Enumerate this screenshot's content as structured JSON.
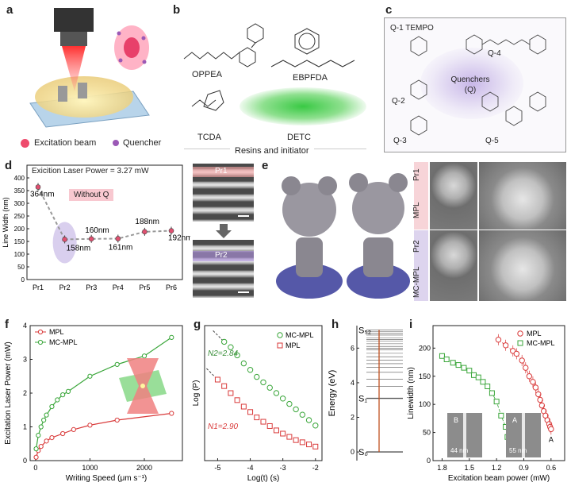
{
  "panels": {
    "a": {
      "letter": "a",
      "legend": [
        "Excitation beam",
        "Quencher"
      ]
    },
    "b": {
      "letter": "b",
      "molecules": [
        "OPPEA",
        "EBPFDA",
        "TCDA",
        "DETC"
      ],
      "footer": "Resins and initiator"
    },
    "c": {
      "letter": "c",
      "quenchers": [
        "Q-1 TEMPO",
        "Q-2",
        "Q-3",
        "Q-4",
        "Q-5"
      ],
      "center_label": "Quenchers (Q)"
    },
    "d": {
      "letter": "d",
      "title": "Exicition Laser Power = 3.27 mW",
      "without_q": "Without Q",
      "sem_labels": [
        "Pr1",
        "Pr2"
      ],
      "chart_data": {
        "type": "scatter",
        "xlabel": "",
        "ylabel": "Line Width (nm)",
        "categories": [
          "Pr1",
          "Pr2",
          "Pr3",
          "Pr4",
          "Pr5",
          "Pr6"
        ],
        "ylim": [
          0,
          450
        ],
        "yticks": [
          0,
          50,
          100,
          150,
          200,
          250,
          300,
          350,
          400
        ],
        "values": [
          364,
          158,
          160,
          161,
          188,
          192
        ],
        "labels": [
          "364nm",
          "158nm",
          "160nm",
          "161nm",
          "188nm",
          "192nm"
        ]
      }
    },
    "e": {
      "letter": "e",
      "row_labels": [
        "MPL",
        "Pr1",
        "MC-MPL",
        "Pr2"
      ]
    },
    "f": {
      "letter": "f",
      "chart_data": {
        "type": "line",
        "xlabel": "Writing Speed (μm s⁻¹)",
        "ylabel": "Excitation Laser Power (mW)",
        "xlim": [
          -100,
          2700
        ],
        "ylim": [
          0,
          4
        ],
        "xticks": [
          0,
          1000,
          2000
        ],
        "yticks": [
          0,
          1,
          2,
          3,
          4
        ],
        "series": [
          {
            "name": "MPL",
            "color": "#d93a3a",
            "x": [
              10,
              50,
              100,
              200,
              300,
              500,
              700,
              1000,
              1500,
              2500
            ],
            "y": [
              0.1,
              0.3,
              0.42,
              0.58,
              0.68,
              0.8,
              0.92,
              1.05,
              1.2,
              1.4
            ]
          },
          {
            "name": "MC-MPL",
            "color": "#3aa63a",
            "x": [
              10,
              50,
              100,
              150,
              200,
              300,
              400,
              500,
              600,
              1000,
              1500,
              2000,
              2500
            ],
            "y": [
              0.35,
              0.75,
              1.0,
              1.2,
              1.35,
              1.6,
              1.8,
              1.95,
              2.05,
              2.5,
              2.85,
              3.1,
              3.65
            ]
          }
        ]
      }
    },
    "g": {
      "letter": "g",
      "n2": "N2=2.84",
      "n1": "N1=2.90",
      "chart_data": {
        "type": "scatter",
        "xlabel": "Log(t) (s)",
        "ylabel": "Log (P)",
        "xlim": [
          -5.4,
          -1.8
        ],
        "xticks": [
          -5,
          -4,
          -3,
          -2
        ],
        "series": [
          {
            "name": "MC-MPL",
            "color": "#3aa63a",
            "x": [
              -4.8,
              -4.6,
              -4.4,
              -4.2,
              -4.0,
              -3.8,
              -3.6,
              -3.4,
              -3.2,
              -3.0,
              -2.8,
              -2.6,
              -2.4,
              -2.2,
              -2.0
            ],
            "y": [
              4.3,
              4.2,
              4.05,
              3.9,
              3.78,
              3.65,
              3.55,
              3.45,
              3.35,
              3.25,
              3.15,
              3.05,
              2.95,
              2.85,
              2.75
            ]
          },
          {
            "name": "MPL",
            "color": "#d93a3a",
            "x": [
              -5.0,
              -4.8,
              -4.6,
              -4.4,
              -4.2,
              -4.0,
              -3.8,
              -3.6,
              -3.4,
              -3.2,
              -3.0,
              -2.8,
              -2.6,
              -2.4,
              -2.2,
              -2.0
            ],
            "y": [
              3.6,
              3.48,
              3.35,
              3.22,
              3.1,
              3.0,
              2.9,
              2.82,
              2.74,
              2.66,
              2.6,
              2.54,
              2.48,
              2.44,
              2.4,
              2.36
            ]
          }
        ]
      }
    },
    "h": {
      "letter": "h",
      "ylabel": "Energy (eV)",
      "yticks": [
        "0",
        "2",
        "4",
        "6"
      ],
      "levels": [
        "S₀",
        "S₁",
        "S₅₂"
      ]
    },
    "i": {
      "letter": "i",
      "inset_labels": [
        "B",
        "A"
      ],
      "inset_scale": [
        "44 nm",
        "55 nm"
      ],
      "points": [
        "B",
        "A"
      ],
      "chart_data": {
        "type": "scatter",
        "xlabel": "Excitation beam power (mW)",
        "ylabel": "Linewidth (nm)",
        "xlim": [
          1.9,
          0.45
        ],
        "ylim": [
          0,
          240
        ],
        "xticks": [
          1.8,
          1.5,
          1.2,
          0.9,
          0.6
        ],
        "yticks": [
          0,
          50,
          100,
          150,
          200
        ],
        "series": [
          {
            "name": "MPL",
            "color": "#d93a3a",
            "x": [
              1.18,
              1.1,
              1.02,
              0.98,
              0.92,
              0.88,
              0.84,
              0.8,
              0.77,
              0.74,
              0.72,
              0.7,
              0.68,
              0.66,
              0.64,
              0.62,
              0.61,
              0.6
            ],
            "y": [
              215,
              205,
              195,
              190,
              178,
              165,
              150,
              140,
              130,
              118,
              108,
              98,
              88,
              80,
              72,
              65,
              60,
              56
            ]
          },
          {
            "name": "MC-MPL",
            "color": "#3aa63a",
            "x": [
              1.8,
              1.75,
              1.68,
              1.62,
              1.56,
              1.5,
              1.45,
              1.4,
              1.35,
              1.3,
              1.25,
              1.2,
              1.15,
              1.1,
              1.08
            ],
            "y": [
              186,
              180,
              174,
              170,
              165,
              160,
              152,
              148,
              140,
              132,
              120,
              105,
              80,
              60,
              42
            ]
          }
        ]
      }
    }
  }
}
